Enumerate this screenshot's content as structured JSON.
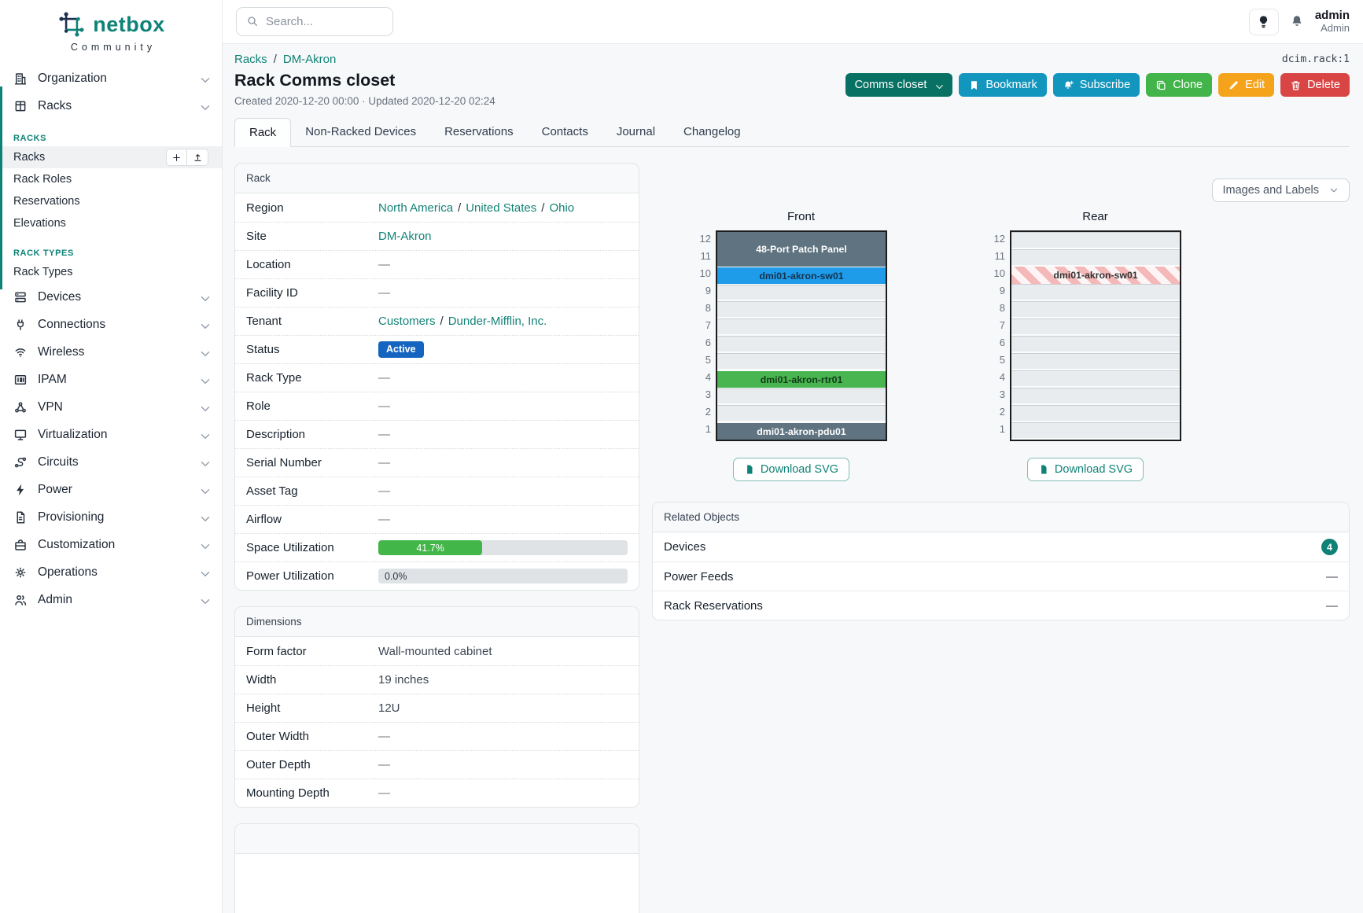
{
  "colors": {
    "brand_teal": "#0e8276",
    "link_teal": "#128277",
    "rename_btn": "#087164",
    "cyan_btn": "#1396be",
    "green_btn": "#42b44a",
    "orange_btn": "#f5a31b",
    "red_btn": "#d94545",
    "status_badge": "#1565c0",
    "progress_green": "#43b649"
  },
  "brand": {
    "name": "netbox",
    "subtitle": "Community"
  },
  "topbar": {
    "search_placeholder": "Search...",
    "user_name": "admin",
    "user_role": "Admin"
  },
  "sidebar": {
    "items": [
      {
        "type": "group",
        "label": "Organization",
        "icon": "building"
      },
      {
        "type": "group",
        "label": "Racks",
        "icon": "rack",
        "expanded": true
      },
      {
        "type": "section",
        "label": "RACKS"
      },
      {
        "type": "child",
        "label": "Racks",
        "active": true,
        "actions": [
          "add",
          "import"
        ]
      },
      {
        "type": "child",
        "label": "Rack Roles"
      },
      {
        "type": "child",
        "label": "Reservations"
      },
      {
        "type": "child",
        "label": "Elevations"
      },
      {
        "type": "section",
        "label": "RACK TYPES"
      },
      {
        "type": "child",
        "label": "Rack Types"
      },
      {
        "type": "group",
        "label": "Devices",
        "icon": "devices"
      },
      {
        "type": "group",
        "label": "Connections",
        "icon": "plug"
      },
      {
        "type": "group",
        "label": "Wireless",
        "icon": "wifi"
      },
      {
        "type": "group",
        "label": "IPAM",
        "icon": "binary"
      },
      {
        "type": "group",
        "label": "VPN",
        "icon": "network"
      },
      {
        "type": "group",
        "label": "Virtualization",
        "icon": "monitor"
      },
      {
        "type": "group",
        "label": "Circuits",
        "icon": "route"
      },
      {
        "type": "group",
        "label": "Power",
        "icon": "bolt"
      },
      {
        "type": "group",
        "label": "Provisioning",
        "icon": "doc"
      },
      {
        "type": "group",
        "label": "Customization",
        "icon": "briefcase"
      },
      {
        "type": "group",
        "label": "Operations",
        "icon": "gear"
      },
      {
        "type": "group",
        "label": "Admin",
        "icon": "users"
      }
    ]
  },
  "page": {
    "breadcrumb": [
      "Racks",
      "DM-Akron"
    ],
    "object_id": "dcim.rack:1",
    "title": "Rack Comms closet",
    "meta": "Created 2020-12-20 00:00 · Updated 2020-12-20 02:24",
    "actions": {
      "rename": "Comms closet",
      "bookmark": "Bookmark",
      "subscribe": "Subscribe",
      "clone": "Clone",
      "edit": "Edit",
      "delete": "Delete"
    },
    "tabs": [
      {
        "label": "Rack",
        "active": true
      },
      {
        "label": "Non-Racked Devices"
      },
      {
        "label": "Reservations"
      },
      {
        "label": "Contacts"
      },
      {
        "label": "Journal"
      },
      {
        "label": "Changelog"
      }
    ]
  },
  "rack_panel": {
    "title": "Rack",
    "rows": [
      {
        "label": "Region",
        "type": "links",
        "links": [
          "North America",
          "United States",
          "Ohio"
        ]
      },
      {
        "label": "Site",
        "type": "links",
        "links": [
          "DM-Akron"
        ]
      },
      {
        "label": "Location",
        "type": "dash"
      },
      {
        "label": "Facility ID",
        "type": "dash"
      },
      {
        "label": "Tenant",
        "type": "links",
        "links": [
          "Customers",
          "Dunder-Mifflin, Inc."
        ]
      },
      {
        "label": "Status",
        "type": "badge",
        "value": "Active"
      },
      {
        "label": "Rack Type",
        "type": "dash"
      },
      {
        "label": "Role",
        "type": "dash"
      },
      {
        "label": "Description",
        "type": "dash"
      },
      {
        "label": "Serial Number",
        "type": "dash"
      },
      {
        "label": "Asset Tag",
        "type": "dash"
      },
      {
        "label": "Airflow",
        "type": "dash"
      },
      {
        "label": "Space Utilization",
        "type": "progress",
        "value": 41.7,
        "text": "41.7%"
      },
      {
        "label": "Power Utilization",
        "type": "progress",
        "value": 0.0,
        "text": "0.0%"
      }
    ]
  },
  "dimensions_panel": {
    "title": "Dimensions",
    "rows": [
      {
        "label": "Form factor",
        "type": "text",
        "value": "Wall-mounted cabinet"
      },
      {
        "label": "Width",
        "type": "text",
        "value": "19 inches"
      },
      {
        "label": "Height",
        "type": "text",
        "value": "12U"
      },
      {
        "label": "Outer Width",
        "type": "dash"
      },
      {
        "label": "Outer Depth",
        "type": "dash"
      },
      {
        "label": "Mounting Depth",
        "type": "dash"
      }
    ]
  },
  "elevations": {
    "view_label": "Images and Labels",
    "download_label": "Download SVG",
    "unit_count": 12,
    "front": {
      "title": "Front",
      "units": [
        {
          "span": 2,
          "label": "48-Port Patch Panel",
          "bg": "#5f7380",
          "fg": "#ffffff"
        },
        {
          "span": 1,
          "label": "dmi01-akron-sw01",
          "bg": "#1e9be9",
          "fg": "#14334d"
        },
        {
          "span": 1
        },
        {
          "span": 1
        },
        {
          "span": 1
        },
        {
          "span": 1
        },
        {
          "span": 1
        },
        {
          "span": 1,
          "label": "dmi01-akron-rtr01",
          "bg": "#48b551",
          "fg": "#123a16"
        },
        {
          "span": 1
        },
        {
          "span": 1
        },
        {
          "span": 1,
          "label": "dmi01-akron-pdu01",
          "bg": "#5f7380",
          "fg": "#ffffff"
        }
      ]
    },
    "rear": {
      "title": "Rear",
      "units": [
        {
          "span": 1
        },
        {
          "span": 1
        },
        {
          "span": 1,
          "label": "dmi01-akron-sw01",
          "striped": true,
          "fg": "#333333"
        },
        {
          "span": 1
        },
        {
          "span": 1
        },
        {
          "span": 1
        },
        {
          "span": 1
        },
        {
          "span": 1
        },
        {
          "span": 1
        },
        {
          "span": 1
        },
        {
          "span": 1
        },
        {
          "span": 1
        }
      ]
    }
  },
  "related_objects": {
    "title": "Related Objects",
    "rows": [
      {
        "label": "Devices",
        "count": "4"
      },
      {
        "label": "Power Feeds",
        "dash": true
      },
      {
        "label": "Rack Reservations",
        "dash": true
      }
    ]
  }
}
